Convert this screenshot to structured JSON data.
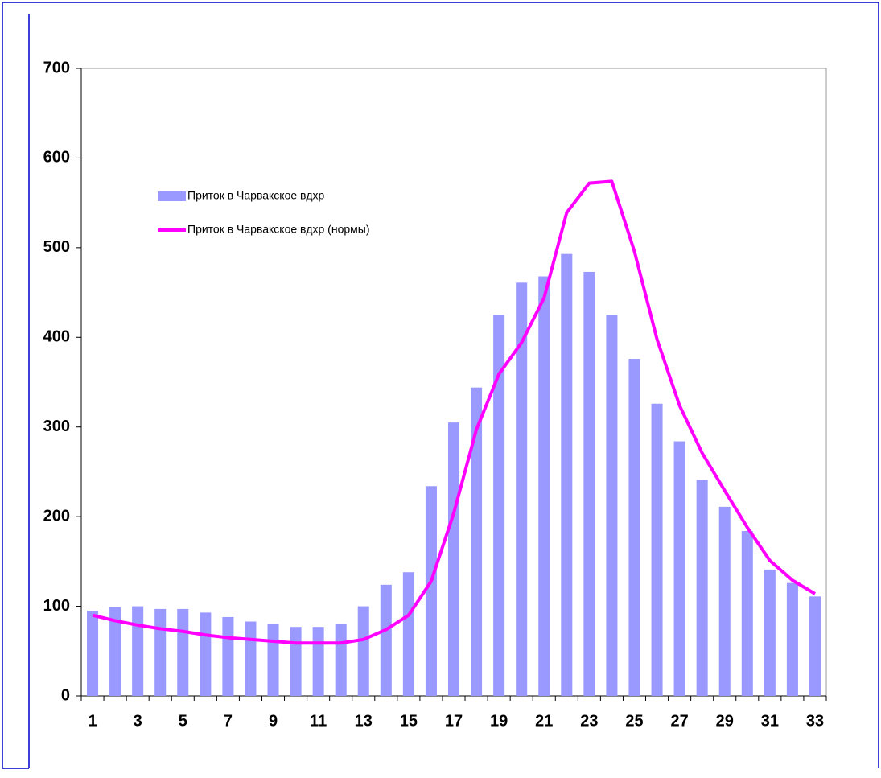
{
  "chart_data": {
    "type": "bar",
    "categories": [
      "1",
      null,
      "3",
      null,
      "5",
      null,
      "7",
      null,
      "9",
      null,
      "11",
      null,
      "13",
      null,
      "15",
      null,
      "17",
      null,
      "19",
      null,
      "21",
      null,
      "23",
      null,
      "25",
      null,
      "27",
      null,
      "29",
      null,
      "31",
      null,
      "33"
    ],
    "series": [
      {
        "name": "Приток в Чарвакское вдхр",
        "type": "bar",
        "color": "#9999ff",
        "values": [
          95,
          99,
          100,
          97,
          97,
          93,
          88,
          83,
          80,
          77,
          77,
          80,
          100,
          124,
          138,
          234,
          305,
          344,
          425,
          461,
          468,
          493,
          473,
          425,
          376,
          326,
          284,
          241,
          211,
          184,
          141,
          126,
          111
        ]
      },
      {
        "name": "Приток в Чарвакское вдхр (нормы)",
        "type": "line",
        "color": "#ff00ff",
        "values": [
          90,
          84,
          79,
          75,
          72,
          68,
          65,
          63,
          61,
          59,
          59,
          59,
          63,
          74,
          90,
          128,
          204,
          297,
          359,
          394,
          444,
          539,
          572,
          574,
          496,
          398,
          324,
          271,
          229,
          188,
          151,
          129,
          114
        ]
      }
    ],
    "ylim": [
      0,
      700
    ],
    "yticks": [
      0,
      100,
      200,
      300,
      400,
      500,
      600,
      700
    ],
    "legend": "upper left",
    "grid": false
  }
}
